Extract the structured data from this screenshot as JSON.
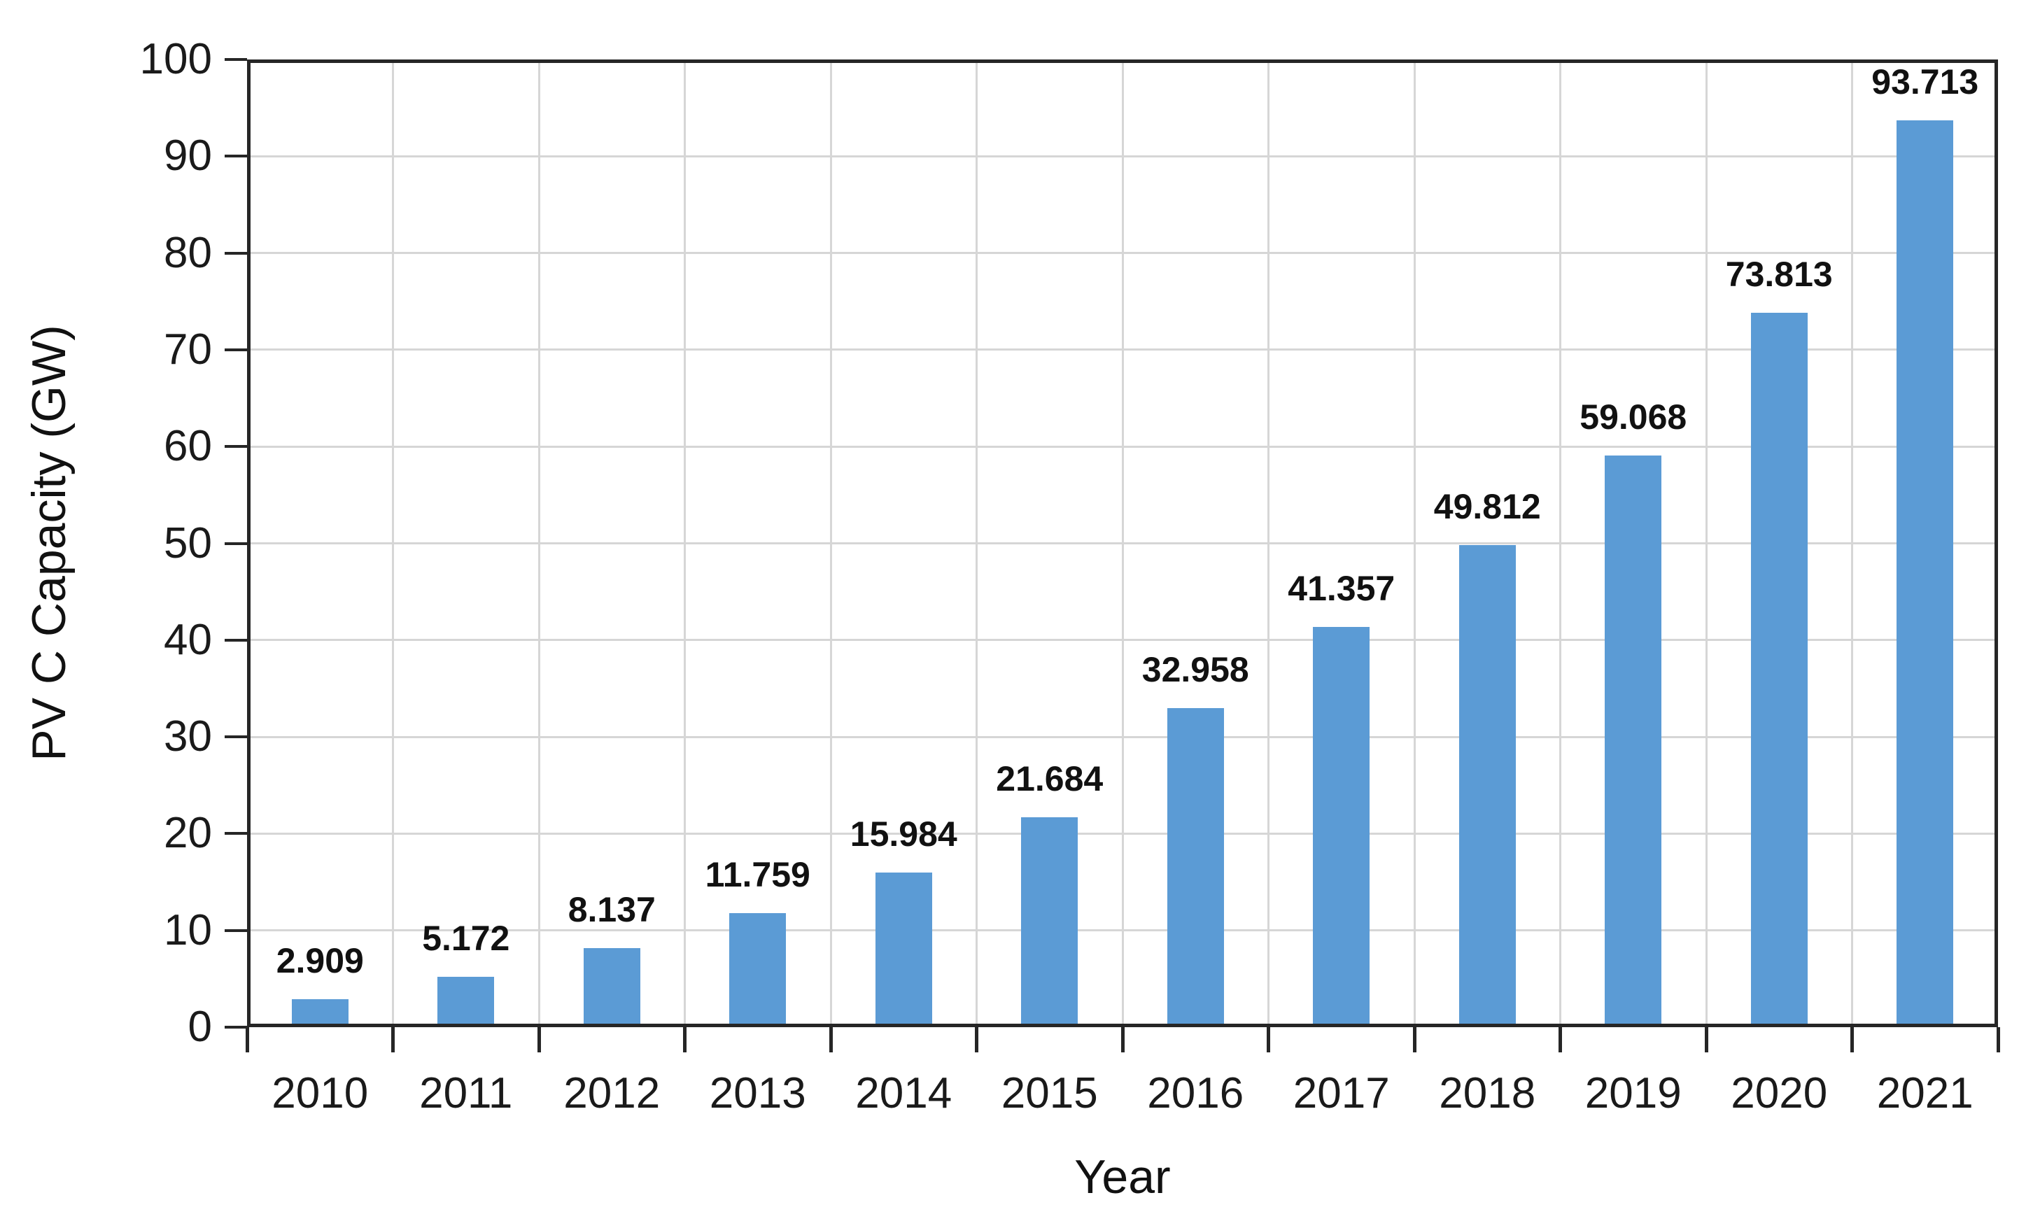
{
  "chart_data": {
    "type": "bar",
    "title": "",
    "xlabel": "Year",
    "ylabel": "PV C Capacity (GW)",
    "categories": [
      "2010",
      "2011",
      "2012",
      "2013",
      "2014",
      "2015",
      "2016",
      "2017",
      "2018",
      "2019",
      "2020",
      "2021"
    ],
    "values": [
      2.909,
      5.172,
      8.137,
      11.759,
      15.984,
      21.684,
      32.958,
      41.357,
      49.812,
      59.068,
      73.813,
      93.713
    ],
    "data_labels": [
      "2.909",
      "5.172",
      "8.137",
      "11.759",
      "15.984",
      "21.684",
      "32.958",
      "41.357",
      "49.812",
      "59.068",
      "73.813",
      "93.713"
    ],
    "ylim": [
      0,
      100
    ],
    "yticks": [
      0,
      10,
      20,
      30,
      40,
      50,
      60,
      70,
      80,
      90,
      100
    ],
    "grid": true,
    "legend_position": "none",
    "bar_color": "#5B9BD5",
    "grid_color": "#d6d6d6",
    "axis_color": "#262626",
    "label_color": "#111111"
  }
}
